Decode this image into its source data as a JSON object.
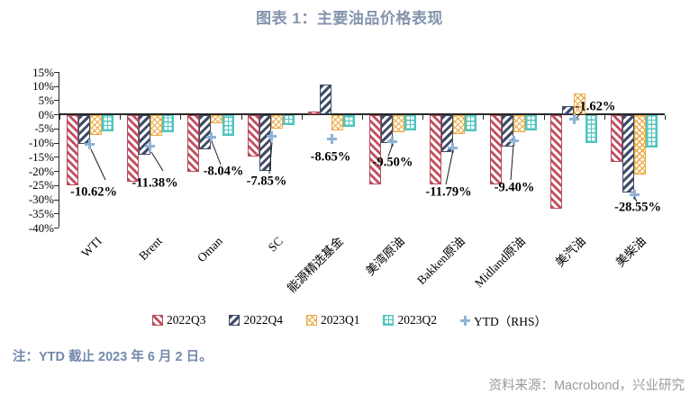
{
  "title": "图表 1：主要油品价格表现",
  "note": "注：YTD 截止 2023 年 6 月 2 日。",
  "source": "资料来源：Macrobond，兴业研究",
  "chart_data": {
    "type": "bar",
    "title": "图表 1：主要油品价格表现",
    "categories": [
      "WTI",
      "Brent",
      "Oman",
      "SC",
      "能源精选基金",
      "美湾原油",
      "Bakken原油",
      "Midland原油",
      "美汽油",
      "美柴油"
    ],
    "series": [
      {
        "name": "2022Q3",
        "color": "#c04f5e",
        "pattern": "diagonal-down",
        "values": [
          -24.6,
          -23.5,
          -20.0,
          -14.6,
          1.0,
          -24.5,
          -24.5,
          -24.5,
          -33.0,
          -16.6
        ]
      },
      {
        "name": "2022Q4",
        "color": "#3e4b66",
        "pattern": "diagonal-up",
        "values": [
          -10.0,
          -13.9,
          -12.0,
          -19.8,
          10.7,
          -9.9,
          -13.1,
          -11.0,
          2.8,
          -27.3
        ]
      },
      {
        "name": "2023Q1",
        "color": "#eca83f",
        "pattern": "crosshatch",
        "values": [
          -7.0,
          -7.3,
          -2.9,
          -4.6,
          -5.5,
          -6.1,
          -6.7,
          -6.0,
          7.5,
          -21.0
        ]
      },
      {
        "name": "2023Q2",
        "color": "#4fc4bf",
        "pattern": "grid",
        "values": [
          -5.8,
          -5.9,
          -7.2,
          -3.4,
          -4.1,
          -5.4,
          -5.7,
          -5.2,
          -9.7,
          -11.5
        ]
      }
    ],
    "marker_series": {
      "name": "YTD（RHS）",
      "color": "#8fb3d5",
      "marker": "cross",
      "values": [
        -10.62,
        -11.38,
        -8.04,
        -7.85,
        -8.65,
        -9.5,
        -11.79,
        -9.4,
        -1.62,
        -28.55
      ],
      "labels": [
        "-10.62%",
        "-11.38%",
        "-8.04%",
        "-7.85%",
        "-8.65%",
        "-9.50%",
        "-11.79%",
        "-9.40%",
        "-1.62%",
        "-28.55%"
      ]
    },
    "ylabel": "",
    "xlabel": "",
    "ylim": [
      -40,
      15
    ],
    "ytick_step": 5,
    "ytick_format": "percent",
    "grid": false,
    "legend_position": "bottom"
  }
}
